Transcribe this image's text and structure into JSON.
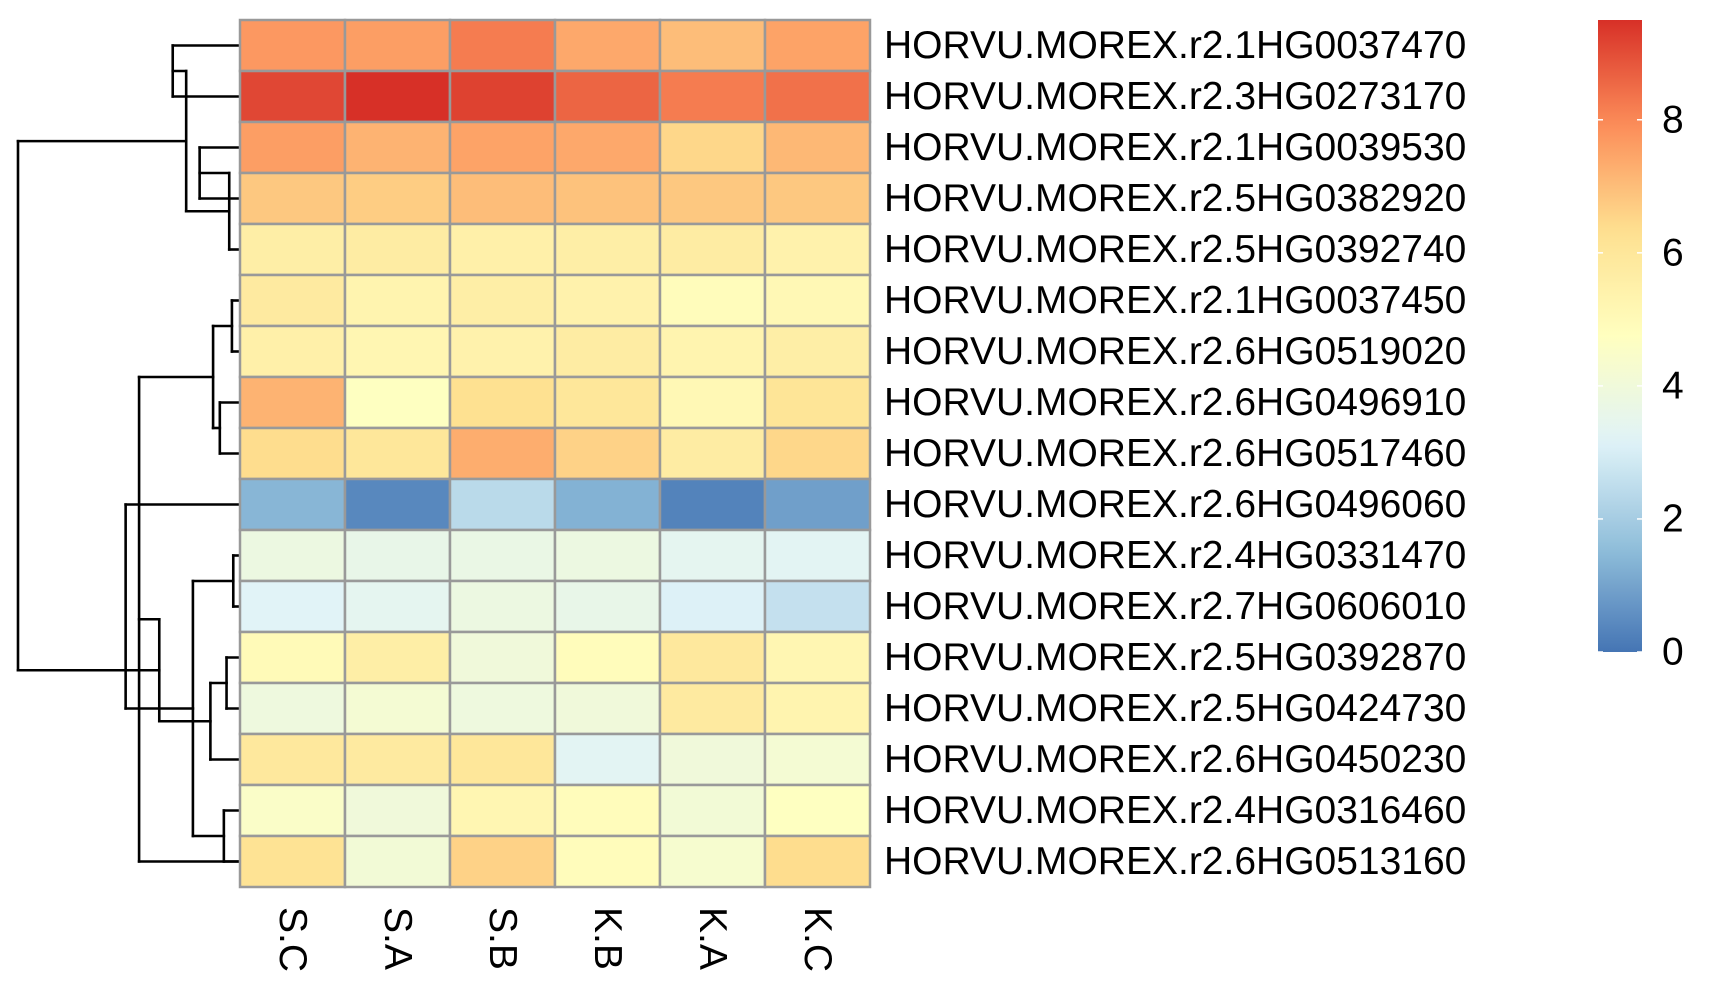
{
  "chart_data": {
    "type": "heatmap",
    "title": "",
    "columns": [
      "S.C",
      "S.A",
      "S.B",
      "K.B",
      "K.A",
      "K.C"
    ],
    "rows": [
      "HORVU.MOREX.r2.1HG0037470",
      "HORVU.MOREX.r2.3HG0273170",
      "HORVU.MOREX.r2.1HG0039530",
      "HORVU.MOREX.r2.5HG0382920",
      "HORVU.MOREX.r2.5HG0392740",
      "HORVU.MOREX.r2.1HG0037450",
      "HORVU.MOREX.r2.6HG0519020",
      "HORVU.MOREX.r2.6HG0496910",
      "HORVU.MOREX.r2.6HG0517460",
      "HORVU.MOREX.r2.6HG0496060",
      "HORVU.MOREX.r2.4HG0331470",
      "HORVU.MOREX.r2.7HG0606010",
      "HORVU.MOREX.r2.5HG0392870",
      "HORVU.MOREX.r2.5HG0424730",
      "HORVU.MOREX.r2.6HG0450230",
      "HORVU.MOREX.r2.4HG0316460",
      "HORVU.MOREX.r2.6HG0513160"
    ],
    "values": [
      [
        7.7,
        7.6,
        8.2,
        7.4,
        7.0,
        7.5
      ],
      [
        9.1,
        9.5,
        9.2,
        8.6,
        8.2,
        8.4
      ],
      [
        7.6,
        7.2,
        7.5,
        7.4,
        6.5,
        7.1
      ],
      [
        6.8,
        6.7,
        7.0,
        6.9,
        6.8,
        6.8
      ],
      [
        5.6,
        5.7,
        5.5,
        5.6,
        5.7,
        5.4
      ],
      [
        5.8,
        5.3,
        5.6,
        5.4,
        4.9,
        5.1
      ],
      [
        5.5,
        5.2,
        5.4,
        5.7,
        5.3,
        5.6
      ],
      [
        7.2,
        4.7,
        6.3,
        6.0,
        5.1,
        6.1
      ],
      [
        6.4,
        6.0,
        7.3,
        6.6,
        5.7,
        6.5
      ],
      [
        1.4,
        0.4,
        2.4,
        1.3,
        0.3,
        0.9
      ],
      [
        3.8,
        3.6,
        3.7,
        3.8,
        3.4,
        3.3
      ],
      [
        3.2,
        3.4,
        3.8,
        3.6,
        3.1,
        2.6
      ],
      [
        5.0,
        5.6,
        4.0,
        4.9,
        5.9,
        5.2
      ],
      [
        3.9,
        4.2,
        3.9,
        4.0,
        5.8,
        5.3
      ],
      [
        5.9,
        5.8,
        6.0,
        3.3,
        4.0,
        4.2
      ],
      [
        4.5,
        4.0,
        5.2,
        4.9,
        4.1,
        4.7
      ],
      [
        6.2,
        4.1,
        6.6,
        4.9,
        4.3,
        6.4
      ]
    ],
    "color_scale": {
      "min": 0,
      "max": 9.5,
      "stops": [
        "#4575B4",
        "#91BFDB",
        "#E0F3F8",
        "#FFFFBF",
        "#FEE090",
        "#FC8D59",
        "#D73027"
      ]
    },
    "legend": {
      "placement": "right",
      "ticks": [
        0,
        2,
        4,
        6,
        8
      ]
    },
    "cell_border_color": "#999999",
    "dendrogram_color": "#000000",
    "row_dendrogram": {
      "leaves": [
        1,
        2,
        3,
        4,
        5,
        6,
        7,
        8,
        9,
        10,
        11,
        12,
        13,
        14,
        15,
        16,
        17
      ],
      "merges": [
        [
          1,
          2,
          0.05
        ],
        [
          3,
          4,
          0.03
        ],
        [
          6,
          7,
          0.006
        ],
        [
          8,
          9,
          0.015
        ],
        [
          5,
          19,
          0.008
        ],
        [
          21,
          20,
          0.02
        ],
        [
          18,
          22,
          0.04
        ],
        [
          17,
          23,
          0.075
        ],
        [
          11,
          12,
          0.005
        ],
        [
          13,
          14,
          0.01
        ],
        [
          16,
          17,
          0.012
        ],
        [
          15,
          27,
          0.022
        ],
        [
          26,
          28,
          0.035
        ],
        [
          25,
          29,
          0.06
        ],
        [
          10,
          30,
          0.085
        ],
        [
          24,
          31,
          0.165
        ]
      ]
    }
  }
}
